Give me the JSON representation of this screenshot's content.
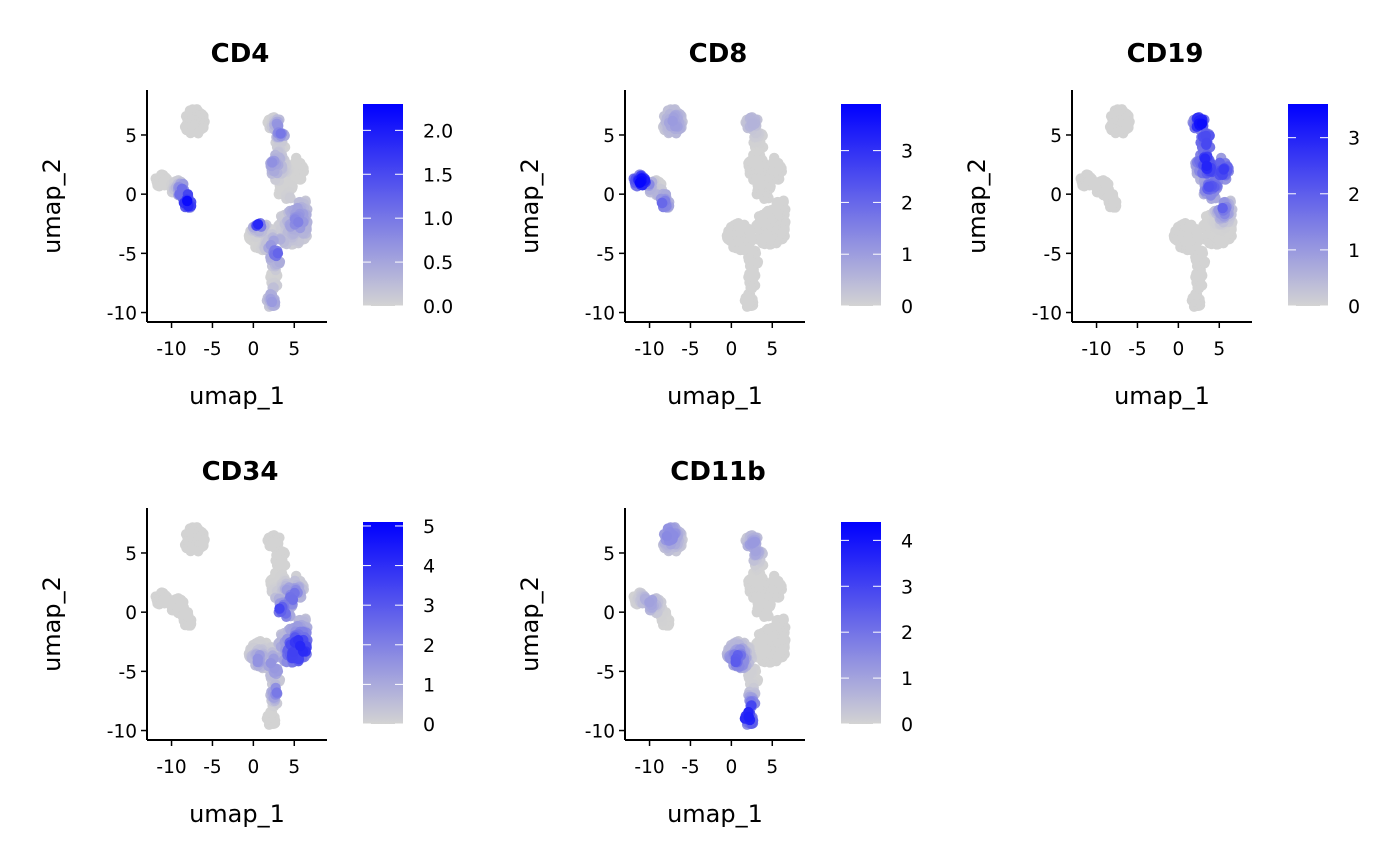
{
  "figure": {
    "colors": {
      "low": "#d3d3d3",
      "high": "#0000ff",
      "axis": "#000000"
    }
  },
  "chart_data": [
    {
      "type": "scatter",
      "title": "CD4",
      "xlabel": "umap_1",
      "ylabel": "umap_2",
      "xlim": [
        -13,
        9
      ],
      "ylim": [
        -10.8,
        8.8
      ],
      "xticks": [
        -10,
        -5,
        0,
        5
      ],
      "xtick_labels": [
        "-10",
        "-5",
        "0",
        "5"
      ],
      "yticks": [
        5,
        0,
        -5,
        -10
      ],
      "ytick_labels": [
        "5",
        "0",
        "-5",
        "-10"
      ],
      "color_scale": {
        "min": 0,
        "max": 2.3,
        "ticks": [
          0.0,
          0.5,
          1.0,
          1.5,
          2.0
        ],
        "tick_labels": [
          "0.0",
          "0.5",
          "1.0",
          "1.5",
          "2.0"
        ]
      },
      "hot": [
        {
          "x": -8.0,
          "y": -0.6,
          "level": 0.9,
          "spread": 0.9
        },
        {
          "x": -8.7,
          "y": 0.2,
          "level": 0.6,
          "spread": 0.7
        },
        {
          "x": 0.6,
          "y": -2.4,
          "level": 0.8,
          "spread": 0.6
        },
        {
          "x": 2.8,
          "y": -4.8,
          "level": 0.5,
          "spread": 1.0
        },
        {
          "x": 3.3,
          "y": 5.5,
          "level": 0.55,
          "spread": 0.7
        },
        {
          "x": 5.4,
          "y": -2.2,
          "level": 0.35,
          "spread": 1.4
        },
        {
          "x": 2.5,
          "y": 2.5,
          "level": 0.3,
          "spread": 1.0
        },
        {
          "x": 2.5,
          "y": -8.8,
          "level": 0.3,
          "spread": 0.8
        }
      ]
    },
    {
      "type": "scatter",
      "title": "CD8",
      "xlabel": "umap_1",
      "ylabel": "umap_2",
      "xlim": [
        -13,
        9
      ],
      "ylim": [
        -10.8,
        8.8
      ],
      "xticks": [
        -10,
        -5,
        0,
        5
      ],
      "xtick_labels": [
        "-10",
        "-5",
        "0",
        "5"
      ],
      "yticks": [
        5,
        0,
        -5,
        -10
      ],
      "ytick_labels": [
        "5",
        "0",
        "-5",
        "-10"
      ],
      "color_scale": {
        "min": 0,
        "max": 3.9,
        "ticks": [
          0,
          1,
          2,
          3
        ],
        "tick_labels": [
          "0",
          "1",
          "2",
          "3"
        ]
      },
      "hot": [
        {
          "x": -10.9,
          "y": 1.0,
          "level": 1.0,
          "spread": 0.9
        },
        {
          "x": -11.8,
          "y": 1.4,
          "level": 0.8,
          "spread": 0.8
        },
        {
          "x": -8.4,
          "y": -0.8,
          "level": 0.45,
          "spread": 0.9
        },
        {
          "x": -7.0,
          "y": 6.0,
          "level": 0.25,
          "spread": 1.2
        },
        {
          "x": 2.5,
          "y": 6.0,
          "level": 0.15,
          "spread": 1.0
        }
      ]
    },
    {
      "type": "scatter",
      "title": "CD19",
      "xlabel": "umap_1",
      "ylabel": "umap_2",
      "xlim": [
        -13,
        9
      ],
      "ylim": [
        -10.8,
        8.8
      ],
      "xticks": [
        -10,
        -5,
        0,
        5
      ],
      "xtick_labels": [
        "-10",
        "-5",
        "0",
        "5"
      ],
      "yticks": [
        5,
        0,
        -5,
        -10
      ],
      "ytick_labels": [
        "5",
        "0",
        "-5",
        "-10"
      ],
      "color_scale": {
        "min": 0,
        "max": 3.6,
        "ticks": [
          0,
          1,
          2,
          3
        ],
        "tick_labels": [
          "0",
          "1",
          "2",
          "3"
        ]
      },
      "hot": [
        {
          "x": 2.6,
          "y": 6.0,
          "level": 0.9,
          "spread": 1.0
        },
        {
          "x": 3.4,
          "y": 4.5,
          "level": 0.75,
          "spread": 1.0
        },
        {
          "x": 3.6,
          "y": 2.6,
          "level": 0.85,
          "spread": 1.4
        },
        {
          "x": 5.2,
          "y": 2.1,
          "level": 0.7,
          "spread": 1.3
        },
        {
          "x": 4.0,
          "y": 0.7,
          "level": 0.6,
          "spread": 1.1
        },
        {
          "x": 5.5,
          "y": -1.3,
          "level": 0.5,
          "spread": 0.8
        }
      ]
    },
    {
      "type": "scatter",
      "title": "CD34",
      "xlabel": "umap_1",
      "ylabel": "umap_2",
      "xlim": [
        -13,
        9
      ],
      "ylim": [
        -10.8,
        8.8
      ],
      "xticks": [
        -10,
        -5,
        0,
        5
      ],
      "xtick_labels": [
        "-10",
        "-5",
        "0",
        "5"
      ],
      "yticks": [
        5,
        0,
        -5,
        -10
      ],
      "ytick_labels": [
        "5",
        "0",
        "-5",
        "-10"
      ],
      "color_scale": {
        "min": 0,
        "max": 5.1,
        "ticks": [
          0,
          1,
          2,
          3,
          4,
          5
        ],
        "tick_labels": [
          "0",
          "1",
          "2",
          "3",
          "4",
          "5"
        ]
      },
      "hot": [
        {
          "x": 5.6,
          "y": -3.2,
          "level": 0.85,
          "spread": 1.8
        },
        {
          "x": 3.2,
          "y": -0.2,
          "level": 0.7,
          "spread": 1.2
        },
        {
          "x": 4.8,
          "y": 1.4,
          "level": 0.5,
          "spread": 1.0
        },
        {
          "x": 2.6,
          "y": -4.5,
          "level": 0.35,
          "spread": 1.0
        },
        {
          "x": 2.7,
          "y": -6.8,
          "level": 0.45,
          "spread": 0.6
        },
        {
          "x": 0.6,
          "y": -4.0,
          "level": 0.3,
          "spread": 0.8
        }
      ]
    },
    {
      "type": "scatter",
      "title": "CD11b",
      "xlabel": "umap_1",
      "ylabel": "umap_2",
      "xlim": [
        -13,
        9
      ],
      "ylim": [
        -10.8,
        8.8
      ],
      "xticks": [
        -10,
        -5,
        0,
        5
      ],
      "xtick_labels": [
        "-10",
        "-5",
        "0",
        "5"
      ],
      "yticks": [
        5,
        0,
        -5,
        -10
      ],
      "ytick_labels": [
        "5",
        "0",
        "-5",
        "-10"
      ],
      "color_scale": {
        "min": 0,
        "max": 4.4,
        "ticks": [
          0,
          1,
          2,
          3,
          4
        ],
        "tick_labels": [
          "0",
          "1",
          "2",
          "3",
          "4"
        ]
      },
      "hot": [
        {
          "x": 2.0,
          "y": -8.6,
          "level": 0.9,
          "spread": 1.3
        },
        {
          "x": 0.7,
          "y": -4.0,
          "level": 0.55,
          "spread": 1.1
        },
        {
          "x": -7.5,
          "y": 6.5,
          "level": 0.35,
          "spread": 1.2
        },
        {
          "x": 2.7,
          "y": 5.5,
          "level": 0.3,
          "spread": 1.0
        },
        {
          "x": -10.0,
          "y": 0.8,
          "level": 0.25,
          "spread": 1.0
        }
      ]
    }
  ]
}
